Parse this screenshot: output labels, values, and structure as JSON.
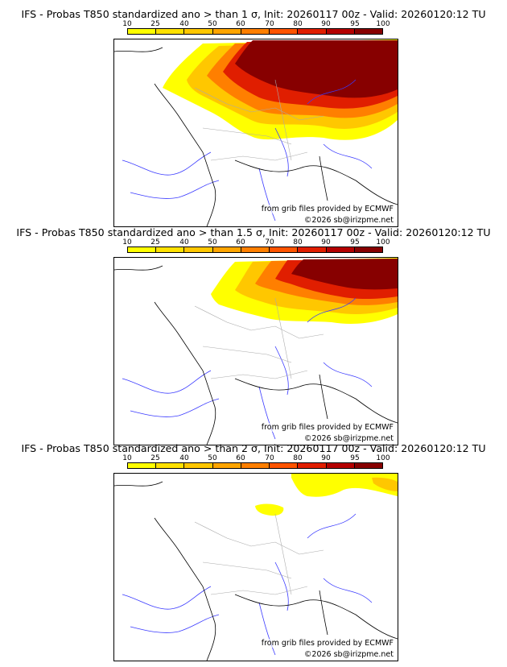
{
  "colors": {
    "bins": [
      "#ffff00",
      "#ffe100",
      "#ffc700",
      "#ffa500",
      "#ff7f00",
      "#ff5400",
      "#e01e00",
      "#b40000",
      "#870000",
      "#5a0000"
    ],
    "coast": "#000000",
    "rivers": "#3a3aff",
    "borders": "#aaaaaa"
  },
  "scale": {
    "ticks": [
      "10",
      "25",
      "40",
      "50",
      "60",
      "70",
      "80",
      "90",
      "95",
      "100"
    ]
  },
  "panels": [
    {
      "title": "IFS - Probas T850  standardized ano > than 1 σ, Init: 20260117 00z - Valid: 20260120:12 TU",
      "threshold_sigma": 1,
      "source_text": "from grib files provided by ECMWF",
      "copyright": "©2026 sb@irizpme.net"
    },
    {
      "title": "IFS - Probas T850  standardized ano > than 1.5 σ, Init: 20260117 00z - Valid: 20260120:12 TU",
      "threshold_sigma": 1.5,
      "source_text": "from grib files provided by ECMWF",
      "copyright": "©2026 sb@irizpme.net"
    },
    {
      "title": "IFS - Probas T850  standardized ano > than 2 σ, Init: 20260117 00z - Valid: 20260120:12 TU",
      "threshold_sigma": 2,
      "source_text": "from grib files provided by ECMWF",
      "copyright": "©2026 sb@irizpme.net"
    }
  ]
}
